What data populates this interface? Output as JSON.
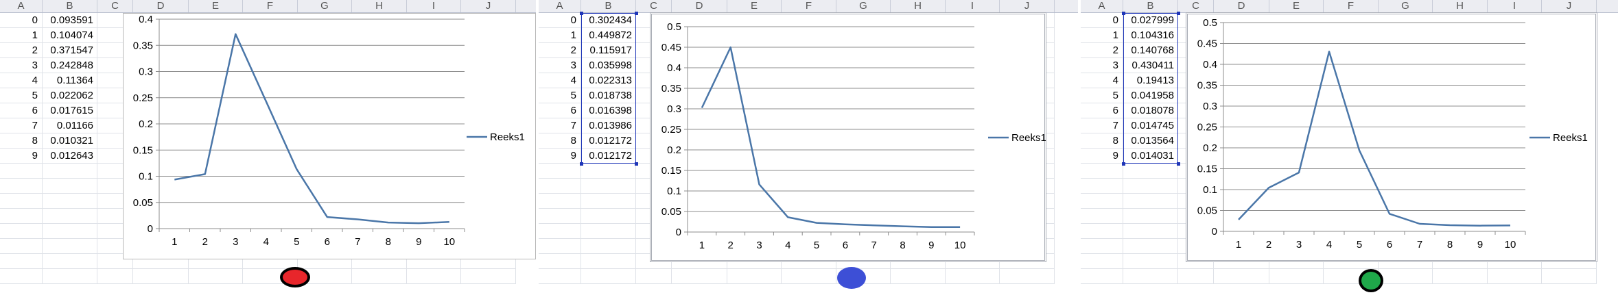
{
  "columns": [
    "A",
    "B",
    "C",
    "D",
    "E",
    "F",
    "G",
    "H",
    "I",
    "J"
  ],
  "panels": [
    {
      "indices": [
        "0",
        "1",
        "2",
        "3",
        "4",
        "5",
        "6",
        "7",
        "8",
        "9"
      ],
      "values": [
        "0.093591",
        "0.104074",
        "0.371547",
        "0.242848",
        "0.11364",
        "0.022062",
        "0.017615",
        "0.01166",
        "0.010321",
        "0.012643"
      ],
      "chart_data": {
        "type": "line",
        "x": [
          1,
          2,
          3,
          4,
          5,
          6,
          7,
          8,
          9,
          10
        ],
        "series": [
          {
            "name": "Reeks1",
            "values": [
              0.093591,
              0.104074,
              0.371547,
              0.242848,
              0.11364,
              0.022062,
              0.017615,
              0.01166,
              0.010321,
              0.012643
            ]
          }
        ],
        "ylim": [
          0,
          0.4
        ],
        "yticks": [
          "0",
          "0.05",
          "0.1",
          "0.15",
          "0.2",
          "0.25",
          "0.3",
          "0.35",
          "0.4"
        ],
        "xticks": [
          "1",
          "2",
          "3",
          "4",
          "5",
          "6",
          "7",
          "8",
          "9",
          "10"
        ],
        "legend": "right",
        "grid": true
      },
      "marker_color": "#e8262b"
    },
    {
      "indices": [
        "0",
        "1",
        "2",
        "3",
        "4",
        "5",
        "6",
        "7",
        "8",
        "9"
      ],
      "values": [
        "0.302434",
        "0.449872",
        "0.115917",
        "0.035998",
        "0.022313",
        "0.018738",
        "0.016398",
        "0.013986",
        "0.012172",
        "0.012172"
      ],
      "chart_data": {
        "type": "line",
        "x": [
          1,
          2,
          3,
          4,
          5,
          6,
          7,
          8,
          9,
          10
        ],
        "series": [
          {
            "name": "Reeks1",
            "values": [
              0.302434,
              0.449872,
              0.115917,
              0.035998,
              0.022313,
              0.018738,
              0.016398,
              0.013986,
              0.012172,
              0.012172
            ]
          }
        ],
        "ylim": [
          0,
          0.5
        ],
        "yticks": [
          "0",
          "0.05",
          "0.1",
          "0.15",
          "0.2",
          "0.25",
          "0.3",
          "0.35",
          "0.4",
          "0.45",
          "0.5"
        ],
        "xticks": [
          "1",
          "2",
          "3",
          "4",
          "5",
          "6",
          "7",
          "8",
          "9",
          "10"
        ],
        "legend": "right",
        "grid": true
      },
      "marker_color": "#3d4fd6"
    },
    {
      "indices": [
        "0",
        "1",
        "2",
        "3",
        "4",
        "5",
        "6",
        "7",
        "8",
        "9"
      ],
      "values": [
        "0.027999",
        "0.104316",
        "0.140768",
        "0.430411",
        "0.19413",
        "0.041958",
        "0.018078",
        "0.014745",
        "0.013564",
        "0.014031"
      ],
      "chart_data": {
        "type": "line",
        "x": [
          1,
          2,
          3,
          4,
          5,
          6,
          7,
          8,
          9,
          10
        ],
        "series": [
          {
            "name": "Reeks1",
            "values": [
              0.027999,
              0.104316,
              0.140768,
              0.430411,
              0.19413,
              0.041958,
              0.018078,
              0.014745,
              0.013564,
              0.014031
            ]
          }
        ],
        "ylim": [
          0,
          0.5
        ],
        "yticks": [
          "0",
          "0.05",
          "0.1",
          "0.15",
          "0.2",
          "0.25",
          "0.3",
          "0.35",
          "0.4",
          "0.45",
          "0.5"
        ],
        "xticks": [
          "1",
          "2",
          "3",
          "4",
          "5",
          "6",
          "7",
          "8",
          "9",
          "10"
        ],
        "legend": "right",
        "grid": true
      },
      "marker_color": "#1fa84a"
    }
  ],
  "colors": {
    "series_line": "#4a76a8",
    "gridline": "#8c8c8c",
    "marker_outline": "#000000"
  }
}
